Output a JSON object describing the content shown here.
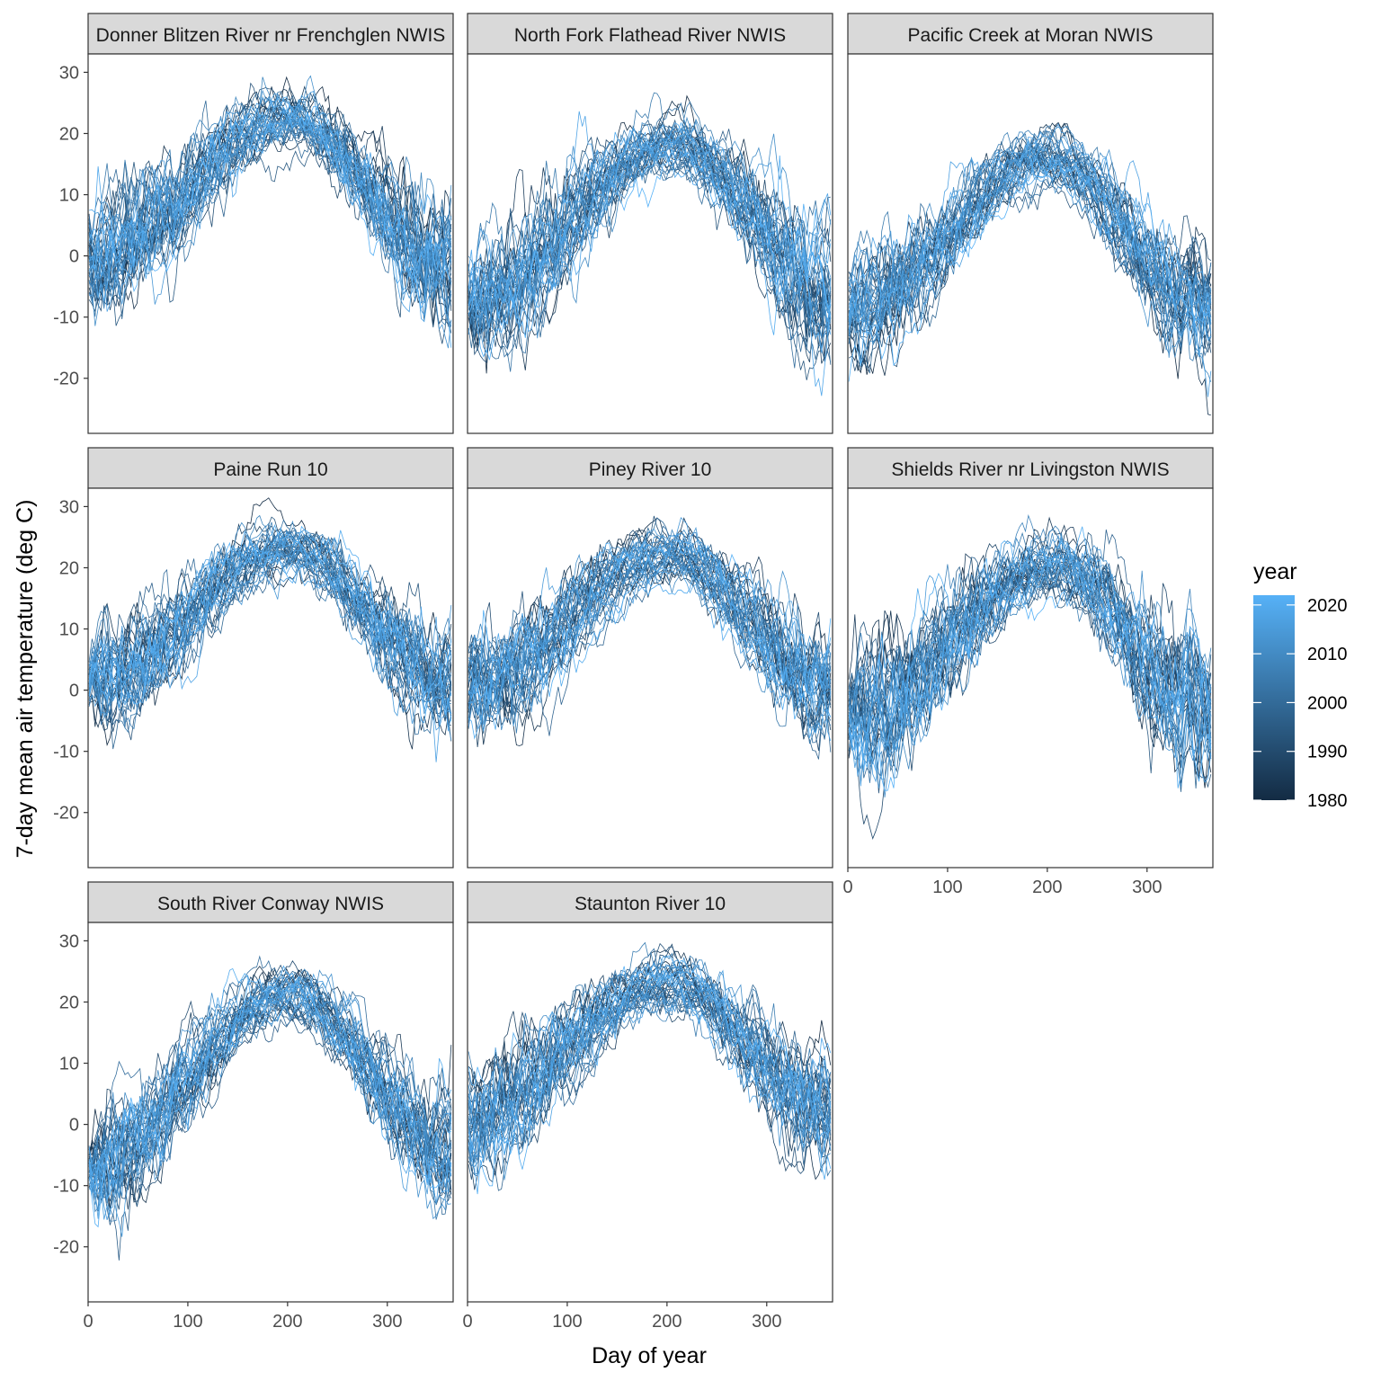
{
  "chart_data": {
    "type": "line",
    "layout": "faceted small multiples (3 columns x 3 rows, 8 panels)",
    "xlabel": "Day of year",
    "ylabel": "7-day mean air temperature (deg C)",
    "xlim": [
      0,
      366
    ],
    "ylim": [
      -29,
      33
    ],
    "x_ticks": [
      0,
      100,
      200,
      300
    ],
    "y_ticks": [
      -20,
      -10,
      0,
      10,
      20,
      30
    ],
    "legend": {
      "title": "year",
      "position": "right",
      "type": "continuous color bar",
      "range": [
        1980,
        2022
      ],
      "ticks": [
        1980,
        1990,
        2000,
        2010,
        2020
      ],
      "color_low": "#132b43",
      "color_high": "#56b1f7"
    },
    "series_description": "one line per year (approx. 1980-2022) of 7-day mean air temperature vs day of year",
    "panels": [
      {
        "title": "Donner Blitzen River nr Frenchglen NWIS",
        "winter_start": 0,
        "summer_peak": 22,
        "peak_day": 200,
        "year_end": -2,
        "noise": 3.5
      },
      {
        "title": "North Fork Flathead River NWIS",
        "winter_start": -7,
        "summer_peak": 18,
        "peak_day": 205,
        "year_end": -6,
        "noise": 3.5
      },
      {
        "title": "Pacific Creek at Moran NWIS",
        "winter_start": -9,
        "summer_peak": 16,
        "peak_day": 200,
        "year_end": -10,
        "noise": 3.0
      },
      {
        "title": "Paine Run 10",
        "winter_start": 1,
        "summer_peak": 23,
        "peak_day": 200,
        "year_end": 2,
        "noise": 3.0
      },
      {
        "title": "Piney River 10",
        "winter_start": 0,
        "summer_peak": 22,
        "peak_day": 200,
        "year_end": 1,
        "noise": 3.0
      },
      {
        "title": "Shields River nr Livingston NWIS",
        "winter_start": -5,
        "summer_peak": 20,
        "peak_day": 205,
        "year_end": -5,
        "noise": 4.0
      },
      {
        "title": "South River Conway NWIS",
        "winter_start": -7,
        "summer_peak": 21,
        "peak_day": 200,
        "year_end": -4,
        "noise": 3.0
      },
      {
        "title": "Staunton River 10",
        "winter_start": 1,
        "summer_peak": 23,
        "peak_day": 200,
        "year_end": 2,
        "noise": 3.0
      }
    ]
  }
}
